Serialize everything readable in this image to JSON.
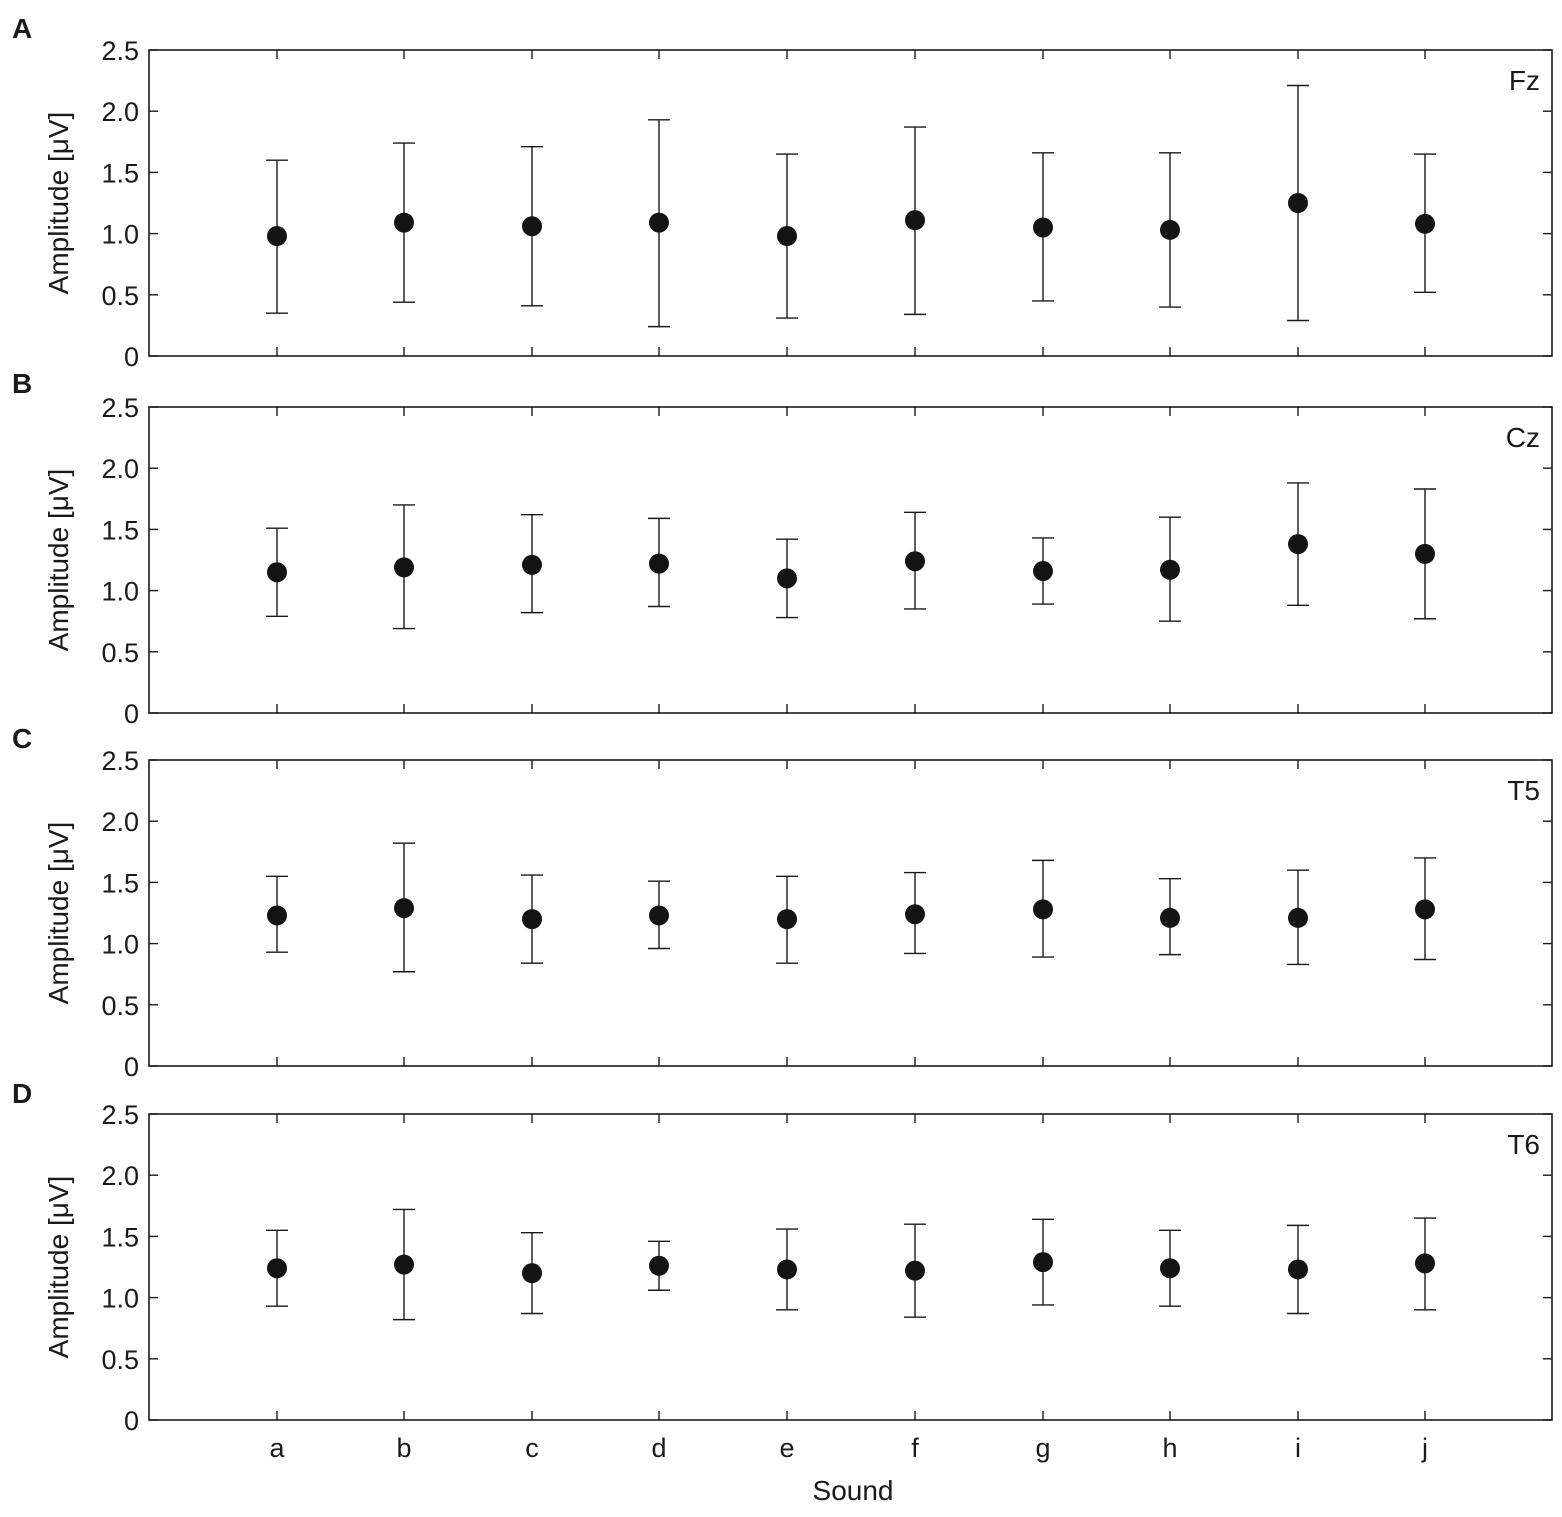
{
  "chart_data": [
    {
      "type": "scatter",
      "panel": "A",
      "channel": "Fz",
      "ylabel": "Amplitude [μV]",
      "xlabel": "",
      "ylim": [
        0,
        2.5
      ],
      "yticks": [
        "0",
        "0.5",
        "1.0",
        "1.5",
        "2.0",
        "2.5"
      ],
      "categories": [
        "a",
        "b",
        "c",
        "d",
        "e",
        "f",
        "g",
        "h",
        "i",
        "j"
      ],
      "values": [
        0.98,
        1.09,
        1.06,
        1.09,
        0.98,
        1.11,
        1.05,
        1.03,
        1.25,
        1.08
      ],
      "err_low": [
        0.35,
        0.44,
        0.41,
        0.24,
        0.31,
        0.34,
        0.45,
        0.4,
        0.29,
        0.52
      ],
      "err_high": [
        1.6,
        1.74,
        1.71,
        1.93,
        1.65,
        1.87,
        1.66,
        1.66,
        2.21,
        1.65
      ]
    },
    {
      "type": "scatter",
      "panel": "B",
      "channel": "Cz",
      "ylabel": "Amplitude [μV]",
      "xlabel": "",
      "ylim": [
        0,
        2.5
      ],
      "yticks": [
        "0",
        "0.5",
        "1.0",
        "1.5",
        "2.0",
        "2.5"
      ],
      "categories": [
        "a",
        "b",
        "c",
        "d",
        "e",
        "f",
        "g",
        "h",
        "i",
        "j"
      ],
      "values": [
        1.15,
        1.19,
        1.21,
        1.22,
        1.1,
        1.24,
        1.16,
        1.17,
        1.38,
        1.3
      ],
      "err_low": [
        0.79,
        0.69,
        0.82,
        0.87,
        0.78,
        0.85,
        0.89,
        0.75,
        0.88,
        0.77
      ],
      "err_high": [
        1.51,
        1.7,
        1.62,
        1.59,
        1.42,
        1.64,
        1.43,
        1.6,
        1.88,
        1.83
      ]
    },
    {
      "type": "scatter",
      "panel": "C",
      "channel": "T5",
      "ylabel": "Amplitude [μV]",
      "xlabel": "",
      "ylim": [
        0,
        2.5
      ],
      "yticks": [
        "0",
        "0.5",
        "1.0",
        "1.5",
        "2.0",
        "2.5"
      ],
      "categories": [
        "a",
        "b",
        "c",
        "d",
        "e",
        "f",
        "g",
        "h",
        "i",
        "j"
      ],
      "values": [
        1.23,
        1.29,
        1.2,
        1.23,
        1.2,
        1.24,
        1.28,
        1.21,
        1.21,
        1.28
      ],
      "err_low": [
        0.93,
        0.77,
        0.84,
        0.96,
        0.84,
        0.92,
        0.89,
        0.91,
        0.83,
        0.87
      ],
      "err_high": [
        1.55,
        1.82,
        1.56,
        1.51,
        1.55,
        1.58,
        1.68,
        1.53,
        1.6,
        1.7
      ]
    },
    {
      "type": "scatter",
      "panel": "D",
      "channel": "T6",
      "ylabel": "Amplitude [μV]",
      "xlabel": "Sound",
      "ylim": [
        0,
        2.5
      ],
      "yticks": [
        "0",
        "0.5",
        "1.0",
        "1.5",
        "2.0",
        "2.5"
      ],
      "categories": [
        "a",
        "b",
        "c",
        "d",
        "e",
        "f",
        "g",
        "h",
        "i",
        "j"
      ],
      "values": [
        1.24,
        1.27,
        1.2,
        1.26,
        1.23,
        1.22,
        1.29,
        1.24,
        1.23,
        1.28
      ],
      "err_low": [
        0.93,
        0.82,
        0.87,
        1.06,
        0.9,
        0.84,
        0.94,
        0.93,
        0.87,
        0.9
      ],
      "err_high": [
        1.55,
        1.72,
        1.53,
        1.46,
        1.56,
        1.6,
        1.64,
        1.55,
        1.59,
        1.65
      ]
    }
  ]
}
